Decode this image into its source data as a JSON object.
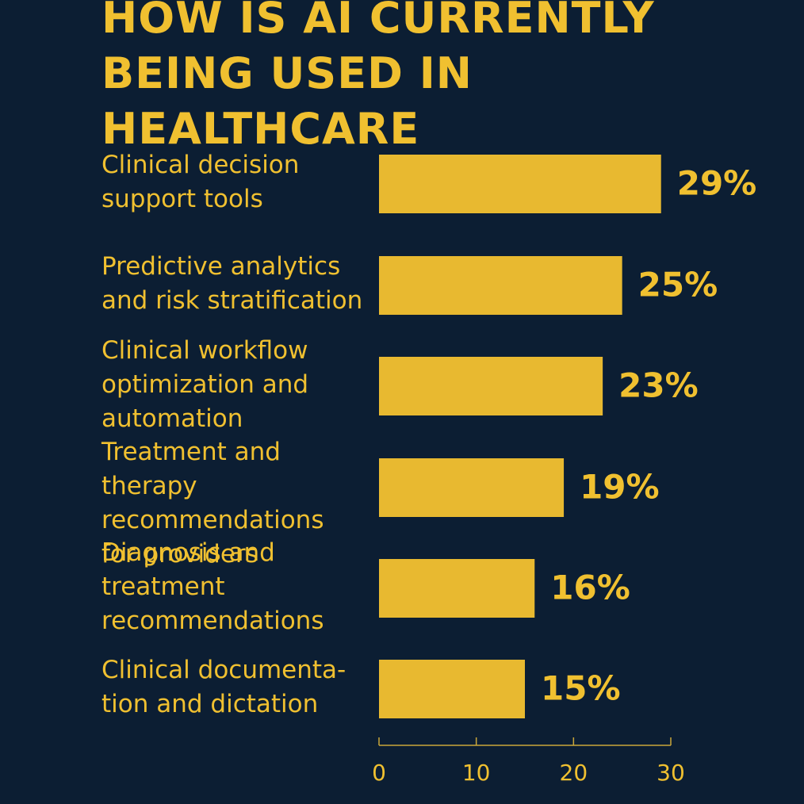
{
  "chart_data": {
    "type": "bar",
    "orientation": "horizontal",
    "title": "HOW IS AI CURRENTLY\nBEING USED IN HEALTHCARE",
    "categories": [
      "Clinical decision\nsupport tools",
      "Predictive analytics\nand risk stratification",
      "Clinical workflow\noptimization and\nautomation",
      "Treatment and therapy\nrecommendations\nfor providers",
      "Diagnosis and\ntreatment\nrecommendations",
      "Clinical documenta-\ntion and dictation"
    ],
    "values": [
      29,
      25,
      23,
      19,
      16,
      15
    ],
    "value_labels": [
      "29%",
      "25%",
      "23%",
      "19%",
      "16%",
      "15%"
    ],
    "color": "#e8b930",
    "xlim": [
      0,
      30
    ],
    "xticks": [
      0,
      10,
      20,
      30
    ]
  }
}
